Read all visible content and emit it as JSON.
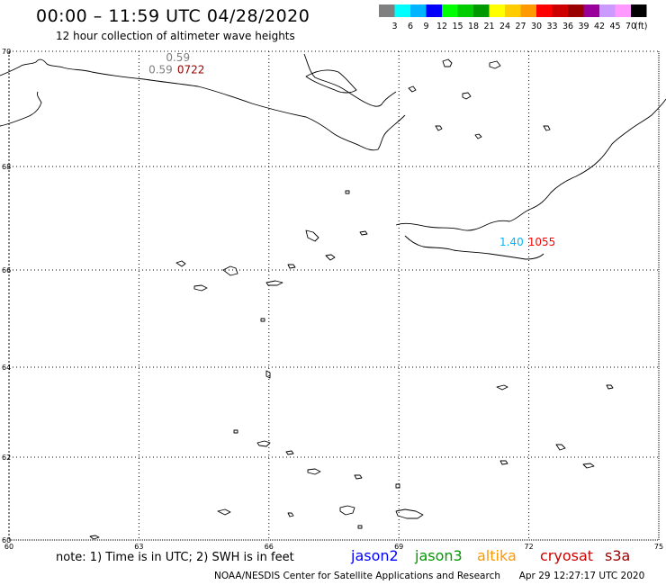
{
  "header": {
    "title": "00:00 – 11:59 UTC 04/28/2020",
    "subtitle": "12 hour collection of altimeter wave heights"
  },
  "color_scale": {
    "colors": [
      "#808080",
      "#00ffff",
      "#00b4ff",
      "#0000ff",
      "#00ff00",
      "#00cc00",
      "#009900",
      "#ffff00",
      "#ffcc00",
      "#ff9900",
      "#ff0000",
      "#cc0000",
      "#990000",
      "#990099",
      "#cc99ff",
      "#ff99ff",
      "#000000"
    ],
    "labels": [
      "3",
      "6",
      "9",
      "12",
      "15",
      "18",
      "21",
      "24",
      "27",
      "30",
      "33",
      "36",
      "39",
      "42",
      "45",
      "70"
    ],
    "unit": "(ft)"
  },
  "map": {
    "lat_labels": [
      "70",
      "68",
      "66",
      "64",
      "62",
      "60"
    ],
    "lon_labels": [
      "60",
      "63",
      "66",
      "69",
      "72",
      "75"
    ],
    "annotations": [
      {
        "text": "0.59",
        "color": "#808080",
        "lat": 69.83,
        "lon": 63.9
      },
      {
        "text": "0.59",
        "color": "#808080",
        "lat": 69.62,
        "lon": 63.5
      },
      {
        "text": "0722",
        "color": "#990000",
        "lat": 69.62,
        "lon": 64.2
      },
      {
        "text": "1.40",
        "color": "#00b4ff",
        "lat": 66.47,
        "lon": 71.6
      },
      {
        "text": "1055",
        "color": "#ff0000",
        "lat": 66.47,
        "lon": 72.3
      }
    ]
  },
  "note": "note:  1) Time is in UTC;  2) SWH is in feet",
  "satellites": [
    {
      "name": "jason2",
      "color": "#0000ff"
    },
    {
      "name": "jason3",
      "color": "#009900"
    },
    {
      "name": "altika",
      "color": "#ff9900"
    },
    {
      "name": "cryosat",
      "color": "#cc0000"
    },
    {
      "name": "s3a",
      "color": "#990000"
    }
  ],
  "footer": {
    "agency": "NOAA/NESDIS Center for Satellite Applications and Research",
    "timestamp": "Apr 29 12:27:17 UTC 2020"
  }
}
